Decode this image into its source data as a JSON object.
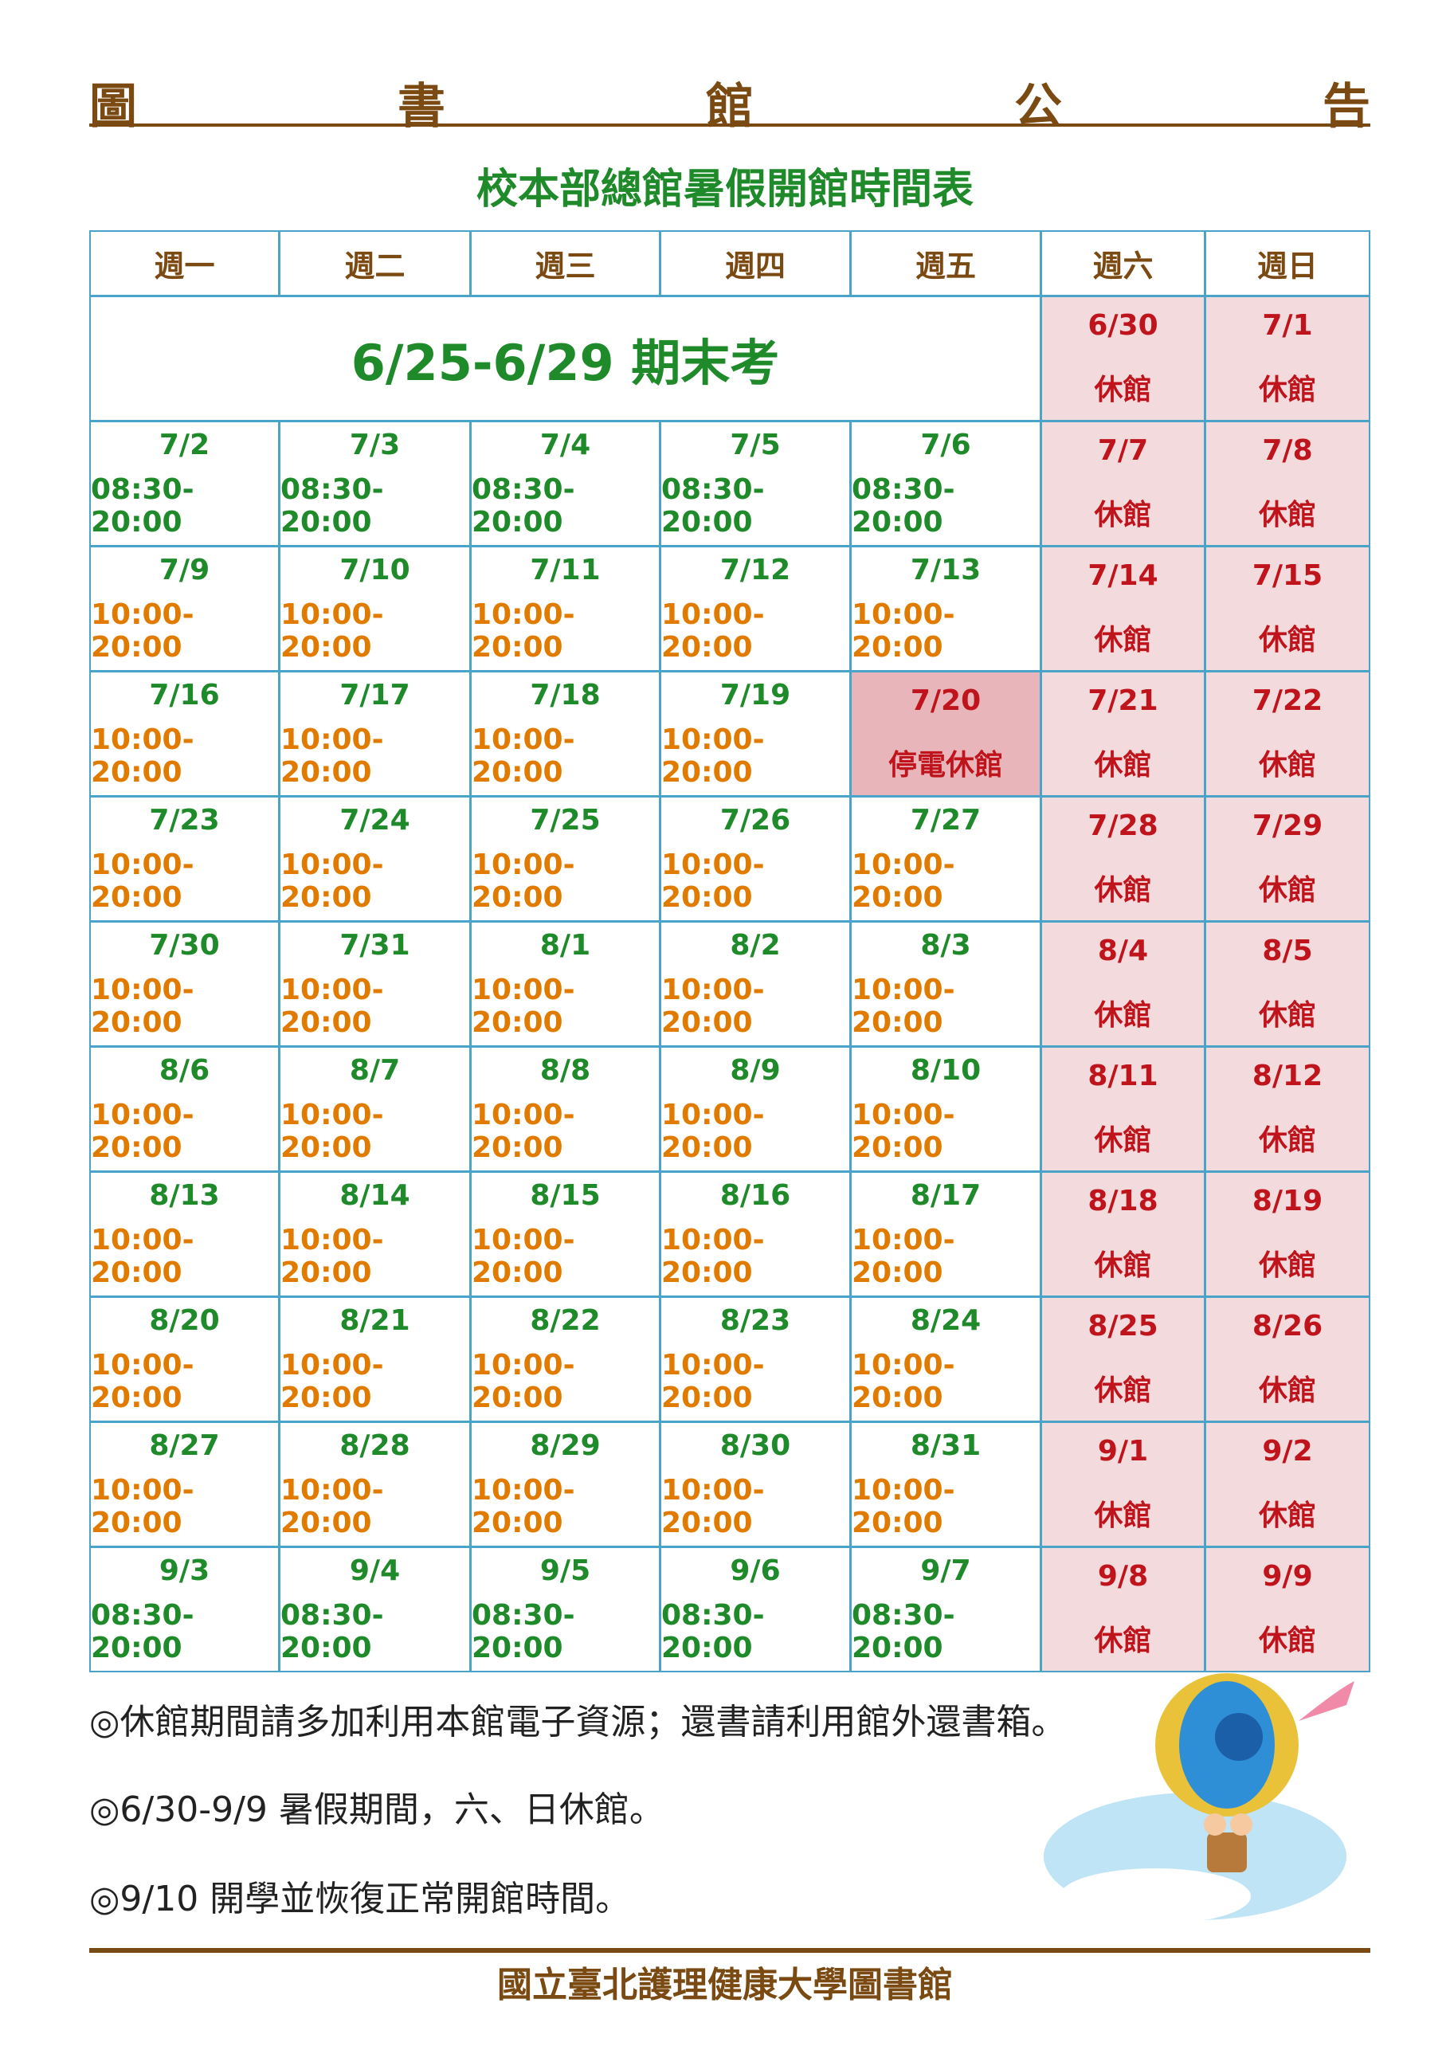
{
  "header": {
    "title_chars": [
      "圖",
      "書",
      "館",
      "公",
      "告"
    ]
  },
  "subtitle": "校本部總館暑假開館時間表",
  "table": {
    "columns": [
      "週一",
      "週二",
      "週三",
      "週四",
      "週五",
      "週六",
      "週日"
    ],
    "exam_row": {
      "label": "6/25-6/29 期末考",
      "cells": [
        {
          "date": "6/30",
          "hours": "休館"
        },
        {
          "date": "7/1",
          "hours": "休館"
        }
      ]
    },
    "rows": [
      [
        {
          "date": "7/2",
          "hours": "08:30-20:00"
        },
        {
          "date": "7/3",
          "hours": "08:30-20:00"
        },
        {
          "date": "7/4",
          "hours": "08:30-20:00"
        },
        {
          "date": "7/5",
          "hours": "08:30-20:00"
        },
        {
          "date": "7/6",
          "hours": "08:30-20:00"
        },
        {
          "date": "7/7",
          "hours": "休館"
        },
        {
          "date": "7/8",
          "hours": "休館"
        }
      ],
      [
        {
          "date": "7/9",
          "hours": "10:00-20:00"
        },
        {
          "date": "7/10",
          "hours": "10:00-20:00"
        },
        {
          "date": "7/11",
          "hours": "10:00-20:00"
        },
        {
          "date": "7/12",
          "hours": "10:00-20:00"
        },
        {
          "date": "7/13",
          "hours": "10:00-20:00"
        },
        {
          "date": "7/14",
          "hours": "休館"
        },
        {
          "date": "7/15",
          "hours": "休館"
        }
      ],
      [
        {
          "date": "7/16",
          "hours": "10:00-20:00"
        },
        {
          "date": "7/17",
          "hours": "10:00-20:00"
        },
        {
          "date": "7/18",
          "hours": "10:00-20:00"
        },
        {
          "date": "7/19",
          "hours": "10:00-20:00"
        },
        {
          "date": "7/20",
          "hours": "停電休館"
        },
        {
          "date": "7/21",
          "hours": "休館"
        },
        {
          "date": "7/22",
          "hours": "休館"
        }
      ],
      [
        {
          "date": "7/23",
          "hours": "10:00-20:00"
        },
        {
          "date": "7/24",
          "hours": "10:00-20:00"
        },
        {
          "date": "7/25",
          "hours": "10:00-20:00"
        },
        {
          "date": "7/26",
          "hours": "10:00-20:00"
        },
        {
          "date": "7/27",
          "hours": "10:00-20:00"
        },
        {
          "date": "7/28",
          "hours": "休館"
        },
        {
          "date": "7/29",
          "hours": "休館"
        }
      ],
      [
        {
          "date": "7/30",
          "hours": "10:00-20:00"
        },
        {
          "date": "7/31",
          "hours": "10:00-20:00"
        },
        {
          "date": "8/1",
          "hours": "10:00-20:00"
        },
        {
          "date": "8/2",
          "hours": "10:00-20:00"
        },
        {
          "date": "8/3",
          "hours": "10:00-20:00"
        },
        {
          "date": "8/4",
          "hours": "休館"
        },
        {
          "date": "8/5",
          "hours": "休館"
        }
      ],
      [
        {
          "date": "8/6",
          "hours": "10:00-20:00"
        },
        {
          "date": "8/7",
          "hours": "10:00-20:00"
        },
        {
          "date": "8/8",
          "hours": "10:00-20:00"
        },
        {
          "date": "8/9",
          "hours": "10:00-20:00"
        },
        {
          "date": "8/10",
          "hours": "10:00-20:00"
        },
        {
          "date": "8/11",
          "hours": "休館"
        },
        {
          "date": "8/12",
          "hours": "休館"
        }
      ],
      [
        {
          "date": "8/13",
          "hours": "10:00-20:00"
        },
        {
          "date": "8/14",
          "hours": "10:00-20:00"
        },
        {
          "date": "8/15",
          "hours": "10:00-20:00"
        },
        {
          "date": "8/16",
          "hours": "10:00-20:00"
        },
        {
          "date": "8/17",
          "hours": "10:00-20:00"
        },
        {
          "date": "8/18",
          "hours": "休館"
        },
        {
          "date": "8/19",
          "hours": "休館"
        }
      ],
      [
        {
          "date": "8/20",
          "hours": "10:00-20:00"
        },
        {
          "date": "8/21",
          "hours": "10:00-20:00"
        },
        {
          "date": "8/22",
          "hours": "10:00-20:00"
        },
        {
          "date": "8/23",
          "hours": "10:00-20:00"
        },
        {
          "date": "8/24",
          "hours": "10:00-20:00"
        },
        {
          "date": "8/25",
          "hours": "休館"
        },
        {
          "date": "8/26",
          "hours": "休館"
        }
      ],
      [
        {
          "date": "8/27",
          "hours": "10:00-20:00"
        },
        {
          "date": "8/28",
          "hours": "10:00-20:00"
        },
        {
          "date": "8/29",
          "hours": "10:00-20:00"
        },
        {
          "date": "8/30",
          "hours": "10:00-20:00"
        },
        {
          "date": "8/31",
          "hours": "10:00-20:00"
        },
        {
          "date": "9/1",
          "hours": "休館"
        },
        {
          "date": "9/2",
          "hours": "休館"
        }
      ],
      [
        {
          "date": "9/3",
          "hours": "08:30-20:00"
        },
        {
          "date": "9/4",
          "hours": "08:30-20:00"
        },
        {
          "date": "9/5",
          "hours": "08:30-20:00"
        },
        {
          "date": "9/6",
          "hours": "08:30-20:00"
        },
        {
          "date": "9/7",
          "hours": "08:30-20:00"
        },
        {
          "date": "9/8",
          "hours": "休館"
        },
        {
          "date": "9/9",
          "hours": "休館"
        }
      ]
    ]
  },
  "notes": [
    "◎休館期間請多加利用本館電子資源；還書請利用館外還書箱。",
    "◎6/30-9/9 暑假期間，六、日休館。",
    "◎9/10 開學並恢復正常開館時間。"
  ],
  "footer": "國立臺北護理健康大學圖書館"
}
